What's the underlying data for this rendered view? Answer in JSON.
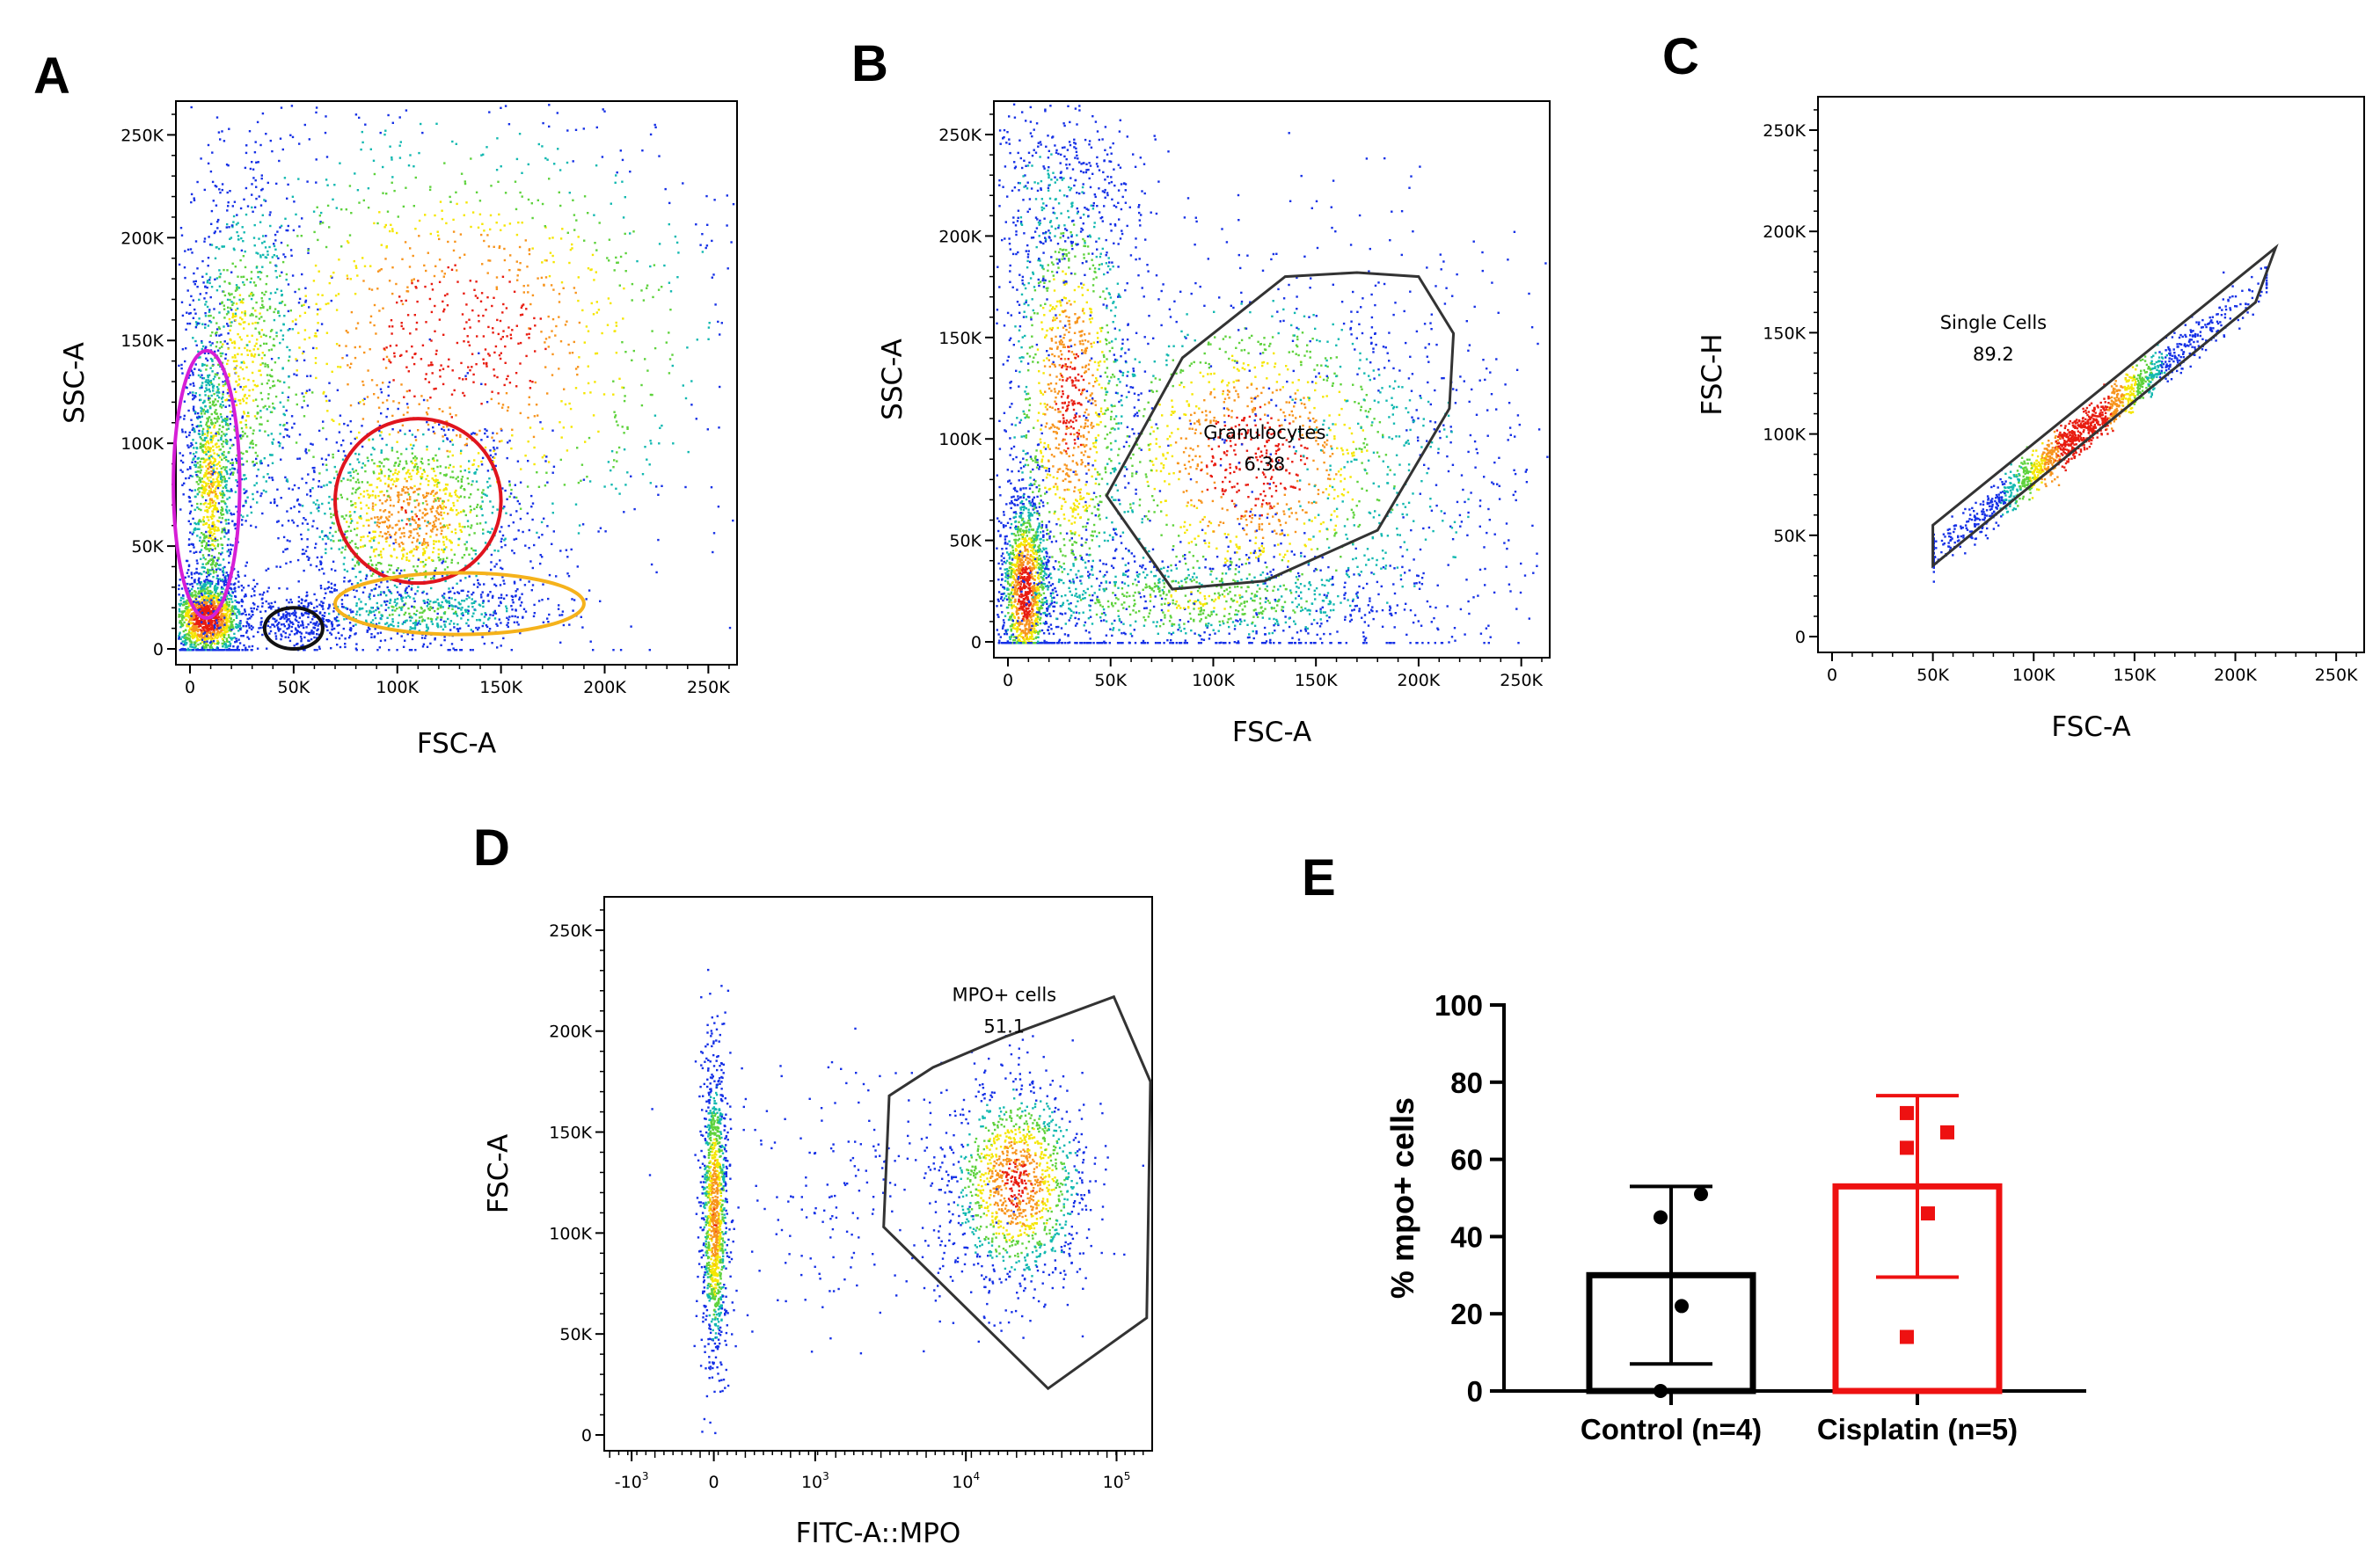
{
  "figure": {
    "panel_letters": {
      "A": "A",
      "B": "B",
      "C": "C",
      "D": "D",
      "E": "E"
    }
  },
  "chart_data": [
    {
      "id": "A",
      "type": "scatter",
      "xlabel": "FSC-A",
      "ylabel": "SSC-A",
      "xlim": [
        0,
        262144
      ],
      "ylim": [
        0,
        262144
      ],
      "x_ticks": [
        {
          "v": 0,
          "label": "0"
        },
        {
          "v": 50000,
          "label": "50K"
        },
        {
          "v": 100000,
          "label": "100K"
        },
        {
          "v": 150000,
          "label": "150K"
        },
        {
          "v": 200000,
          "label": "200K"
        },
        {
          "v": 250000,
          "label": "250K"
        }
      ],
      "y_ticks": [
        {
          "v": 0,
          "label": "0"
        },
        {
          "v": 50000,
          "label": "50K"
        },
        {
          "v": 100000,
          "label": "100K"
        },
        {
          "v": 150000,
          "label": "150K"
        },
        {
          "v": 200000,
          "label": "200K"
        },
        {
          "v": 250000,
          "label": "250K"
        }
      ],
      "populations": [
        {
          "cx": 8000,
          "cy": 15000,
          "sx": 9000,
          "sy": 10000,
          "n": 1500
        },
        {
          "cx": 10000,
          "cy": 80000,
          "sx": 6000,
          "sy": 38000,
          "n": 1000
        },
        {
          "cx": 25000,
          "cy": 140000,
          "sx": 16000,
          "sy": 50000,
          "n": 900
        },
        {
          "cx": 105000,
          "cy": 65000,
          "sx": 28000,
          "sy": 24000,
          "n": 1200
        },
        {
          "cx": 110000,
          "cy": 18000,
          "sx": 35000,
          "sy": 8000,
          "n": 600
        },
        {
          "cx": 50000,
          "cy": 12000,
          "sx": 10000,
          "sy": 6000,
          "n": 220
        },
        {
          "cx": 130000,
          "cy": 150000,
          "sx": 70000,
          "sy": 60000,
          "n": 1400
        }
      ],
      "annotations": [
        {
          "shape": "ellipse",
          "color": "#d61ed6",
          "cx": 8000,
          "cy": 80000,
          "rx": 16000,
          "ry": 65000
        },
        {
          "shape": "ellipse",
          "color": "#e0141e",
          "cx": 110000,
          "cy": 72000,
          "rx": 40000,
          "ry": 40000
        },
        {
          "shape": "ellipse",
          "color": "#111111",
          "cx": 50000,
          "cy": 10000,
          "rx": 14000,
          "ry": 10000
        },
        {
          "shape": "ellipse",
          "color": "#f5b21b",
          "cx": 130000,
          "cy": 22000,
          "rx": 60000,
          "ry": 15000
        }
      ]
    },
    {
      "id": "B",
      "type": "scatter",
      "xlabel": "FSC-A",
      "ylabel": "SSC-A",
      "xlim": [
        0,
        262144
      ],
      "ylim": [
        0,
        262144
      ],
      "x_ticks": [
        {
          "v": 0,
          "label": "0"
        },
        {
          "v": 50000,
          "label": "50K"
        },
        {
          "v": 100000,
          "label": "100K"
        },
        {
          "v": 150000,
          "label": "150K"
        },
        {
          "v": 200000,
          "label": "200K"
        },
        {
          "v": 250000,
          "label": "250K"
        }
      ],
      "y_ticks": [
        {
          "v": 0,
          "label": "0"
        },
        {
          "v": 50000,
          "label": "50K"
        },
        {
          "v": 100000,
          "label": "100K"
        },
        {
          "v": 150000,
          "label": "150K"
        },
        {
          "v": 200000,
          "label": "200K"
        },
        {
          "v": 250000,
          "label": "250K"
        }
      ],
      "populations": [
        {
          "cx": 8000,
          "cy": 25000,
          "sx": 6000,
          "sy": 25000,
          "n": 1400
        },
        {
          "cx": 30000,
          "cy": 120000,
          "sx": 16000,
          "sy": 60000,
          "n": 1300
        },
        {
          "cx": 20000,
          "cy": 220000,
          "sx": 25000,
          "sy": 25000,
          "n": 400
        },
        {
          "cx": 120000,
          "cy": 90000,
          "sx": 45000,
          "sy": 45000,
          "n": 1400
        },
        {
          "cx": 90000,
          "cy": 20000,
          "sx": 55000,
          "sy": 12000,
          "n": 800
        },
        {
          "cx": 180000,
          "cy": 80000,
          "sx": 50000,
          "sy": 60000,
          "n": 500
        }
      ],
      "gate": {
        "label": "Granulocytes",
        "value": "6.38",
        "polygon": [
          [
            48000,
            72000
          ],
          [
            80000,
            26000
          ],
          [
            125000,
            30000
          ],
          [
            180000,
            55000
          ],
          [
            215000,
            115000
          ],
          [
            217000,
            152000
          ],
          [
            200000,
            180000
          ],
          [
            170000,
            182000
          ],
          [
            135000,
            180000
          ],
          [
            85000,
            140000
          ]
        ],
        "label_at": [
          125000,
          100000
        ]
      }
    },
    {
      "id": "C",
      "type": "scatter",
      "xlabel": "FSC-A",
      "ylabel": "FSC-H",
      "xlim": [
        0,
        262144
      ],
      "ylim": [
        0,
        262144
      ],
      "x_ticks": [
        {
          "v": 0,
          "label": "0"
        },
        {
          "v": 50000,
          "label": "50K"
        },
        {
          "v": 100000,
          "label": "100K"
        },
        {
          "v": 150000,
          "label": "150K"
        },
        {
          "v": 200000,
          "label": "200K"
        },
        {
          "v": 250000,
          "label": "250K"
        }
      ],
      "y_ticks": [
        {
          "v": 0,
          "label": "0"
        },
        {
          "v": 50000,
          "label": "50K"
        },
        {
          "v": 100000,
          "label": "100K"
        },
        {
          "v": 150000,
          "label": "150K"
        },
        {
          "v": 200000,
          "label": "200K"
        },
        {
          "v": 250000,
          "label": "250K"
        }
      ],
      "diagonal_band": {
        "x_from": 50000,
        "x_to": 215000,
        "slope": 0.82,
        "intercept": 0,
        "n": 1500
      },
      "gate": {
        "label": "Single Cells",
        "value": "89.2",
        "polygon": [
          [
            50000,
            35000
          ],
          [
            210000,
            165000
          ],
          [
            220000,
            192000
          ],
          [
            50000,
            55000
          ]
        ],
        "label_at": [
          80000,
          152000
        ]
      }
    },
    {
      "id": "D",
      "type": "scatter",
      "xlabel": "FITC-A::MPO",
      "ylabel": "FSC-A",
      "ylim": [
        0,
        262144
      ],
      "x_ticks": [
        {
          "base": "-10",
          "exp": "3",
          "pos": 0.05
        },
        {
          "base": "0",
          "exp": "",
          "pos": 0.2
        },
        {
          "base": "10",
          "exp": "3",
          "pos": 0.385
        },
        {
          "base": "10",
          "exp": "4",
          "pos": 0.66
        },
        {
          "base": "10",
          "exp": "5",
          "pos": 0.935
        }
      ],
      "y_ticks": [
        {
          "v": 0,
          "label": "0"
        },
        {
          "v": 50000,
          "label": "50K"
        },
        {
          "v": 100000,
          "label": "100K"
        },
        {
          "v": 150000,
          "label": "150K"
        },
        {
          "v": 200000,
          "label": "200K"
        },
        {
          "v": 250000,
          "label": "250K"
        }
      ],
      "populations": [
        {
          "cxp": 0.2,
          "cy": 110000,
          "sxp": 0.012,
          "sy": 38000,
          "n": 1200
        },
        {
          "cxp": 0.75,
          "cy": 125000,
          "sxp": 0.065,
          "sy": 26000,
          "n": 1300
        },
        {
          "cxp": 0.45,
          "cy": 120000,
          "sxp": 0.12,
          "sy": 35000,
          "n": 200
        }
      ],
      "gate": {
        "label": "MPO+ cells",
        "value": "51.1",
        "polygon_pos": [
          [
            0.52,
            168000
          ],
          [
            0.6,
            182000
          ],
          [
            0.73,
            197000
          ],
          [
            0.93,
            217000
          ],
          [
            1.005,
            175000
          ],
          [
            0.99,
            58000
          ],
          [
            0.81,
            23000
          ],
          [
            0.51,
            103000
          ]
        ],
        "label_at_pos": [
          0.73,
          215000
        ]
      }
    },
    {
      "id": "E",
      "type": "bar",
      "ylabel": "% mpo+ cells",
      "ylim": [
        0,
        100
      ],
      "y_ticks": [
        0,
        20,
        40,
        60,
        80,
        100
      ],
      "categories": [
        "Control (n=4)",
        "Cisplatin (n=5)"
      ],
      "values": [
        30,
        53
      ],
      "errors": [
        23,
        23.5
      ],
      "colors": [
        "#000000",
        "#ee1111"
      ],
      "points": [
        [
          0,
          22,
          45,
          51
        ],
        [
          14,
          46,
          63,
          67,
          72
        ]
      ]
    }
  ]
}
